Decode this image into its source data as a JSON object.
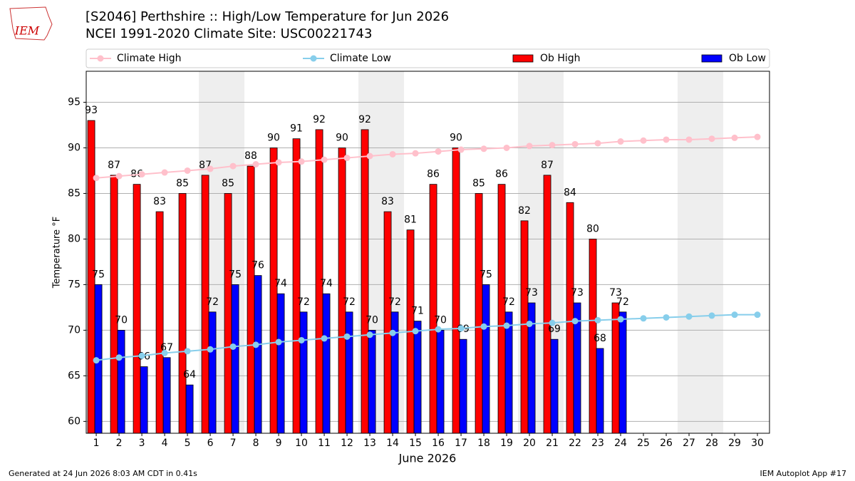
{
  "chart_data": {
    "type": "bar",
    "title": "[S2046] Perthshire :: High/Low Temperature for Jun 2026",
    "subtitle": "NCEI 1991-2020 Climate Site: USC00221743",
    "logo_text": "IEM",
    "ylabel": "Temperature °F",
    "xlabel": "June 2026",
    "footer_left": "Generated at 24 Jun 2026 8:03 AM CDT in 0.41s",
    "footer_right": "IEM Autoplot App #17",
    "x": [
      1,
      2,
      3,
      4,
      5,
      6,
      7,
      8,
      9,
      10,
      11,
      12,
      13,
      14,
      15,
      16,
      17,
      18,
      19,
      20,
      21,
      22,
      23,
      24,
      25,
      26,
      27,
      28,
      29,
      30
    ],
    "xlim": [
      0.56,
      30.53
    ],
    "xticks": [
      1,
      2,
      3,
      4,
      5,
      6,
      7,
      8,
      9,
      10,
      11,
      12,
      13,
      14,
      15,
      16,
      17,
      18,
      19,
      20,
      21,
      22,
      23,
      24,
      25,
      26,
      27,
      28,
      29,
      30
    ],
    "ylim": [
      58.7,
      98.4
    ],
    "yticks": [
      60,
      65,
      70,
      75,
      80,
      85,
      90,
      95
    ],
    "grid": true,
    "shaded_x": [
      [
        5.5,
        7.5
      ],
      [
        12.5,
        14.5
      ],
      [
        19.5,
        21.5
      ],
      [
        26.5,
        28.5
      ]
    ],
    "legend": "top",
    "series": [
      {
        "name": "Climate High",
        "type": "line",
        "color": "#ffc0cb",
        "values": [
          86.7,
          86.9,
          87.1,
          87.3,
          87.5,
          87.7,
          88.0,
          88.2,
          88.4,
          88.5,
          88.7,
          88.9,
          89.1,
          89.3,
          89.4,
          89.6,
          89.8,
          89.9,
          90.0,
          90.2,
          90.3,
          90.4,
          90.5,
          90.7,
          90.8,
          90.9,
          90.9,
          91.0,
          91.1,
          91.2
        ]
      },
      {
        "name": "Climate Low",
        "type": "line",
        "color": "#87ceeb",
        "values": [
          66.7,
          67.0,
          67.2,
          67.5,
          67.7,
          67.9,
          68.2,
          68.4,
          68.7,
          68.9,
          69.1,
          69.3,
          69.5,
          69.7,
          69.9,
          70.1,
          70.2,
          70.4,
          70.5,
          70.7,
          70.8,
          71.0,
          71.1,
          71.2,
          71.3,
          71.4,
          71.5,
          71.6,
          71.7,
          71.7
        ]
      },
      {
        "name": "Ob High",
        "type": "bar",
        "color": "#ff0000",
        "values": [
          93,
          87,
          86,
          83,
          85,
          87,
          85,
          88,
          90,
          91,
          92,
          90,
          92,
          83,
          81,
          86,
          90,
          85,
          86,
          82,
          87,
          84,
          80,
          73,
          null,
          null,
          null,
          null,
          null,
          null
        ]
      },
      {
        "name": "Ob Low",
        "type": "bar",
        "color": "#0000ff",
        "values": [
          75,
          70,
          66,
          67,
          64,
          72,
          75,
          76,
          74,
          72,
          74,
          72,
          70,
          72,
          71,
          70,
          69,
          75,
          72,
          73,
          69,
          73,
          68,
          72,
          null,
          null,
          null,
          null,
          null,
          null
        ]
      }
    ]
  }
}
